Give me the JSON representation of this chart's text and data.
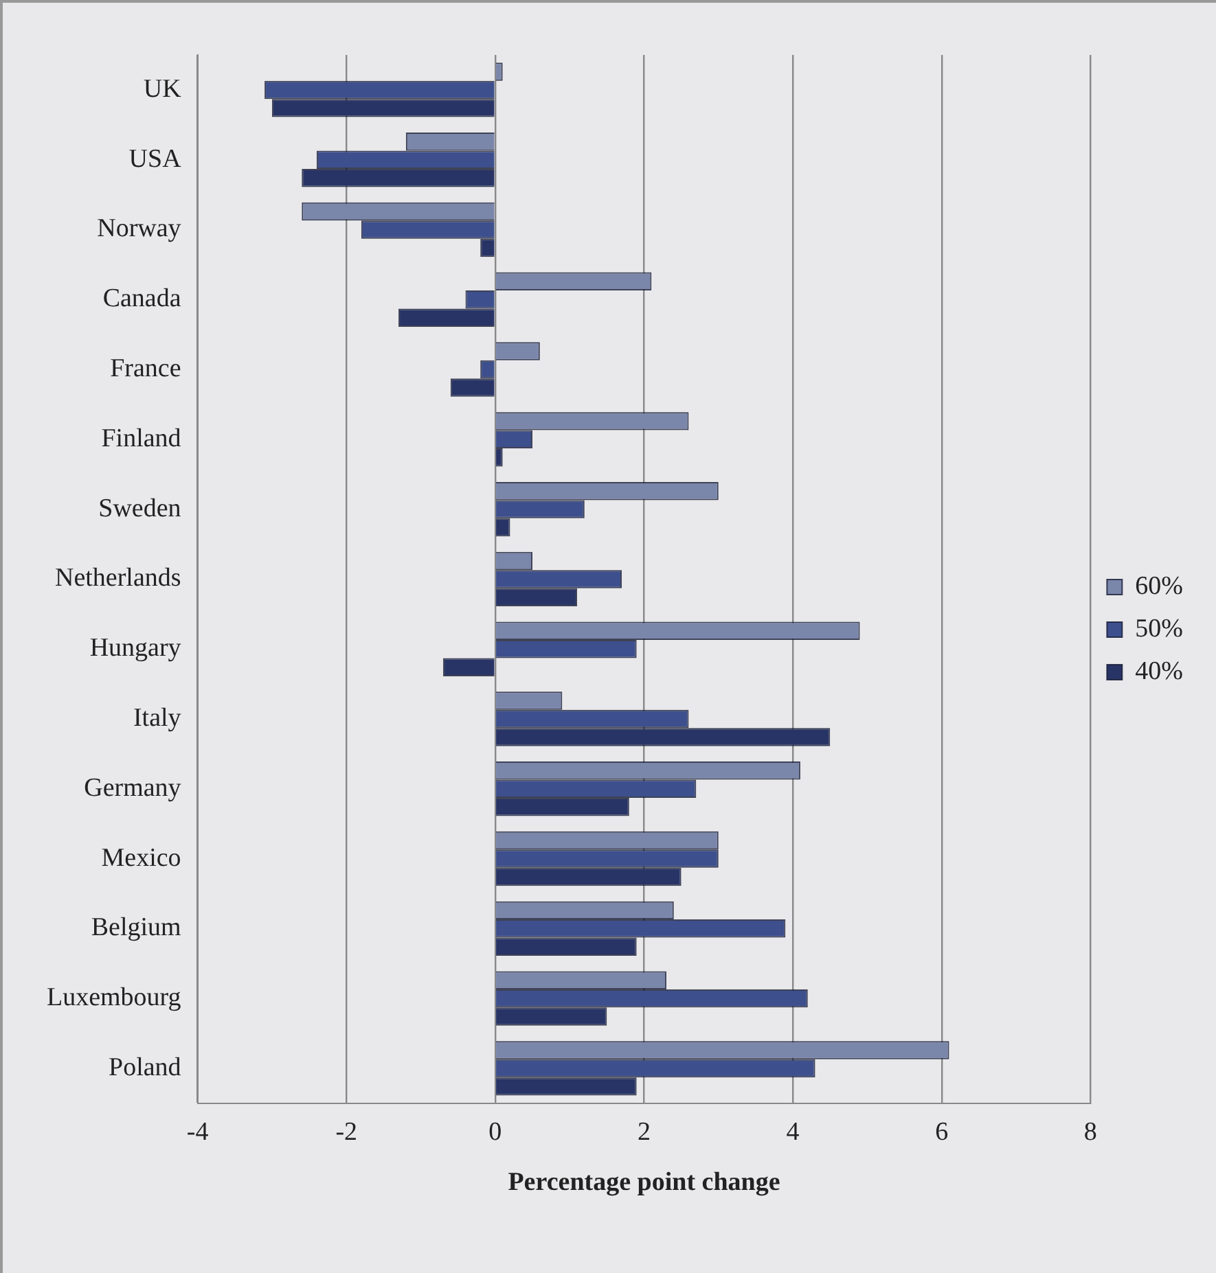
{
  "chart_data": {
    "type": "bar",
    "orientation": "horizontal",
    "xlabel": "Percentage point change",
    "categories": [
      "UK",
      "USA",
      "Norway",
      "Canada",
      "France",
      "Finland",
      "Sweden",
      "Netherlands",
      "Hungary",
      "Italy",
      "Germany",
      "Mexico",
      "Belgium",
      "Luxembourg",
      "Poland"
    ],
    "series": [
      {
        "name": "60%",
        "color": "#7a86aa",
        "values": [
          0.1,
          -1.2,
          -2.6,
          2.1,
          0.6,
          2.6,
          3.0,
          0.5,
          4.9,
          0.9,
          4.1,
          3.0,
          2.4,
          2.3,
          6.1
        ]
      },
      {
        "name": "50%",
        "color": "#3d4f8c",
        "values": [
          -3.1,
          -2.4,
          -1.8,
          -0.4,
          -0.2,
          0.5,
          1.2,
          1.7,
          1.9,
          2.6,
          2.7,
          3.0,
          3.9,
          4.2,
          4.3
        ]
      },
      {
        "name": "40%",
        "color": "#283466",
        "values": [
          -3.0,
          -2.6,
          -0.2,
          -1.3,
          -0.6,
          0.1,
          0.2,
          1.1,
          -0.7,
          4.5,
          1.8,
          2.5,
          1.9,
          1.5,
          1.9
        ]
      }
    ],
    "xlim": [
      -4,
      8
    ],
    "xticks": [
      -4,
      -2,
      0,
      2,
      4,
      6,
      8
    ],
    "grid": "x",
    "legend": "right"
  }
}
